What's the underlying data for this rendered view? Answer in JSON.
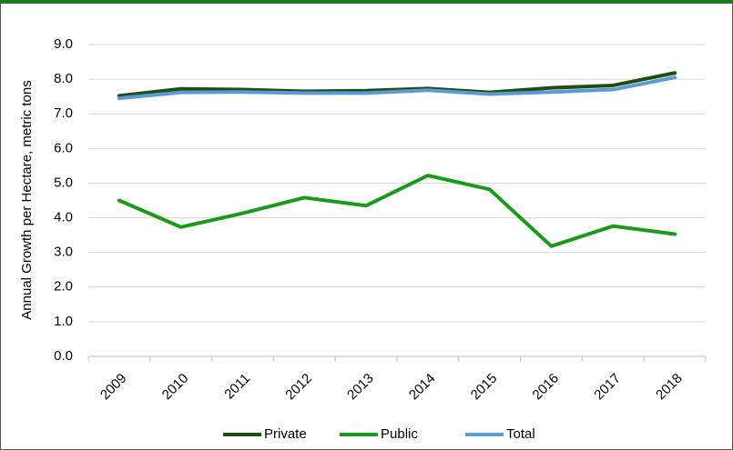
{
  "chart_data": {
    "type": "line",
    "y_label": "Annual Growth per Hectare, metric tons",
    "categories": [
      "2009",
      "2010",
      "2011",
      "2012",
      "2013",
      "2014",
      "2015",
      "2016",
      "2017",
      "2018"
    ],
    "series": [
      {
        "name": "Private",
        "color": "#1e4d16",
        "values": [
          7.52,
          7.72,
          7.7,
          7.65,
          7.67,
          7.73,
          7.62,
          7.75,
          7.82,
          8.18
        ]
      },
      {
        "name": "Public",
        "color": "#1a9a1a",
        "values": [
          4.5,
          3.73,
          4.13,
          4.58,
          4.35,
          5.22,
          4.82,
          3.18,
          3.76,
          3.53
        ]
      },
      {
        "name": "Total",
        "color": "#5b9bd5",
        "values": [
          7.45,
          7.62,
          7.63,
          7.6,
          7.6,
          7.68,
          7.57,
          7.63,
          7.7,
          8.05
        ]
      }
    ],
    "ylim": [
      0,
      9
    ],
    "yticks": [
      {
        "value": 0,
        "label": "0.0"
      },
      {
        "value": 1,
        "label": "1.0"
      },
      {
        "value": 2,
        "label": "2.0"
      },
      {
        "value": 3,
        "label": "3.0"
      },
      {
        "value": 4,
        "label": "4.0"
      },
      {
        "value": 5,
        "label": "5.0"
      },
      {
        "value": 6,
        "label": "6.0"
      },
      {
        "value": 7,
        "label": "7.0"
      },
      {
        "value": 8,
        "label": "8.0"
      },
      {
        "value": 9,
        "label": "9.0"
      }
    ],
    "grid": true,
    "legend": "bottom"
  }
}
